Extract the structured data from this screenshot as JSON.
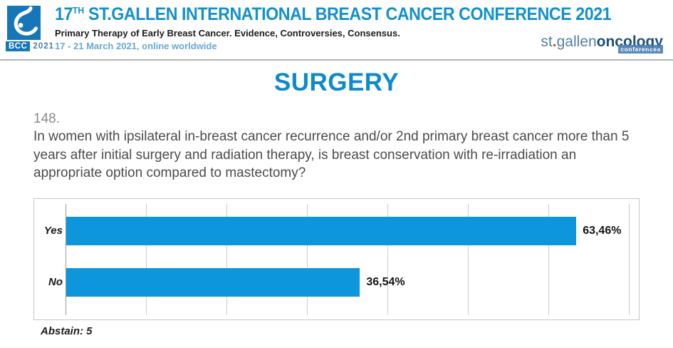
{
  "header": {
    "logo": {
      "abbr": "BCC",
      "year": "2021"
    },
    "title": {
      "number": "17",
      "ordinal": "TH",
      "rest": " ST.GALLEN INTERNATIONAL BREAST CANCER CONFERENCE 2021"
    },
    "subtitle": "Primary Therapy of Early Breast Cancer. Evidence, Controversies, Consensus.",
    "dates": "17 - 21 March 2021, online worldwide",
    "brand": {
      "st": "st",
      "dot": ".",
      "gallen": "gallen",
      "oncology": "oncology",
      "badge": "conferences"
    }
  },
  "slide": {
    "section_title": "SURGERY",
    "question_number": "148.",
    "question_text": "In women with ipsilateral in-breast cancer recurrence and/or 2nd primary breast cancer more than 5 years after initial surgery and radiation therapy, is breast conservation with re-irradiation an appropriate option compared to mastectomy?",
    "abstain_label": "Abstain: 5"
  },
  "chart_data": {
    "type": "bar",
    "orientation": "horizontal",
    "title": "",
    "xlabel": "",
    "ylabel": "",
    "categories": [
      "Yes",
      "No"
    ],
    "values": [
      63.46,
      36.54
    ],
    "value_labels": [
      "63,46%",
      "36,54%"
    ],
    "xlim": [
      0,
      70
    ],
    "gridline_step": 10,
    "grid": true,
    "legend": false,
    "bar_color": "#0e96dc"
  },
  "colors": {
    "title_blue": "#1490cb",
    "heading_blue": "#0e8acb",
    "date_blue": "#68a9d3",
    "logo_blue": "#1576b8",
    "brand_steel": "#54809f",
    "brand_navy": "#1f4e79",
    "bar_blue": "#0e96dc"
  }
}
